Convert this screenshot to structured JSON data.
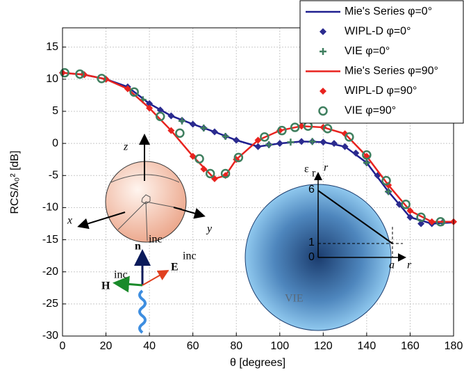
{
  "chart_data": {
    "type": "line",
    "xlabel": "θ [degrees]",
    "ylabel": "RCS/λ₀² [dB]",
    "xlim": [
      0,
      180
    ],
    "xticks": [
      0,
      20,
      40,
      60,
      80,
      100,
      120,
      140,
      160,
      180
    ],
    "ylim": [
      -30,
      18
    ],
    "yticks": [
      -30,
      -25,
      -20,
      -15,
      -10,
      -5,
      0,
      5,
      10,
      15
    ],
    "grid": true,
    "legend": "upper right",
    "series": [
      {
        "name": "Mie's Series φ=0°",
        "color": "#1f1f8f",
        "marker": "line",
        "x": [
          0,
          10,
          20,
          30,
          40,
          50,
          60,
          70,
          80,
          90,
          100,
          110,
          120,
          130,
          140,
          150,
          160,
          170,
          180
        ],
        "values": [
          11,
          10.7,
          10,
          8.8,
          6.2,
          4.3,
          3,
          1.8,
          0.5,
          -0.5,
          0,
          0.3,
          0.2,
          -0.5,
          -3,
          -7.5,
          -11.5,
          -12.5,
          -12.3
        ]
      },
      {
        "name": "WIPL-D φ=0°",
        "color": "#2b2b8f",
        "marker": "diamond",
        "x": [
          0,
          10,
          20,
          30,
          40,
          45,
          50,
          55,
          60,
          65,
          70,
          75,
          80,
          90,
          95,
          100,
          110,
          115,
          120,
          125,
          130,
          135,
          140,
          145,
          150,
          155,
          160,
          165,
          170,
          175
        ],
        "values": [
          11,
          10.7,
          10,
          8.8,
          6.2,
          5.2,
          4.3,
          3.6,
          3,
          2.4,
          1.8,
          1.1,
          0.5,
          -0.5,
          -0.2,
          0,
          0.3,
          0.3,
          0.2,
          0,
          -0.5,
          -1.5,
          -3,
          -5,
          -7.5,
          -9.5,
          -11.5,
          -12.5,
          -12.5,
          -12.3
        ]
      },
      {
        "name": "VIE φ=0°",
        "color": "#3f7f5f",
        "marker": "plus",
        "x": [
          9,
          37,
          55,
          65,
          75,
          95,
          105,
          115,
          140,
          150,
          175
        ],
        "values": [
          10.8,
          6.8,
          3.5,
          2.4,
          1.1,
          -0.2,
          0.2,
          0.3,
          -3,
          -7.5,
          -12.3
        ]
      },
      {
        "name": "Mie's Series φ=90°",
        "color": "#e8231f",
        "marker": "line",
        "x": [
          0,
          10,
          20,
          30,
          40,
          50,
          60,
          70,
          75,
          80,
          90,
          100,
          110,
          120,
          130,
          140,
          150,
          160,
          170,
          180
        ],
        "values": [
          11,
          10.7,
          10,
          8.5,
          5.5,
          2,
          -2,
          -5.5,
          -5,
          -2.5,
          0.5,
          2,
          2.7,
          2.5,
          1.5,
          -2,
          -6.5,
          -10.5,
          -12.2,
          -12.2
        ]
      },
      {
        "name": "WIPL-D φ=90°",
        "color": "#e8231f",
        "marker": "diamond",
        "x": [
          0,
          10,
          20,
          30,
          40,
          50,
          60,
          65,
          70,
          75,
          80,
          90,
          100,
          110,
          120,
          130,
          140,
          150,
          160,
          170,
          180
        ],
        "values": [
          11,
          10.7,
          10,
          8.5,
          5.5,
          2,
          -2,
          -4,
          -5.5,
          -5,
          -2.5,
          0.5,
          2,
          2.7,
          2.5,
          1.5,
          -2,
          -6.5,
          -10.5,
          -12.2,
          -12.2
        ]
      },
      {
        "name": "VIE φ=90°",
        "color": "#3f7f5f",
        "marker": "circle",
        "x": [
          1,
          8,
          18,
          33,
          45,
          54,
          63,
          68,
          75,
          81,
          93,
          101,
          107,
          113,
          122,
          132,
          140,
          149,
          158,
          165,
          174
        ],
        "values": [
          11,
          10.8,
          10.1,
          8,
          4.2,
          1.6,
          -2.4,
          -4.7,
          -4.7,
          -2.2,
          1,
          2,
          2.5,
          2.7,
          2.3,
          1,
          -1.8,
          -5.8,
          -9.5,
          -11.5,
          -12.2
        ]
      }
    ],
    "annotations": {
      "z": "z",
      "x": "x",
      "y": "y",
      "n": "n",
      "n_sup": "inc",
      "H": "H",
      "H_sup": "inc",
      "E": "E",
      "E_sup": "inc",
      "eps": "ε",
      "eps_sub": "r",
      "r_top": "r",
      "six": 6,
      "one": 1,
      "zero": 0,
      "a": "a",
      "r_right": "r",
      "vie": "VIE"
    }
  }
}
